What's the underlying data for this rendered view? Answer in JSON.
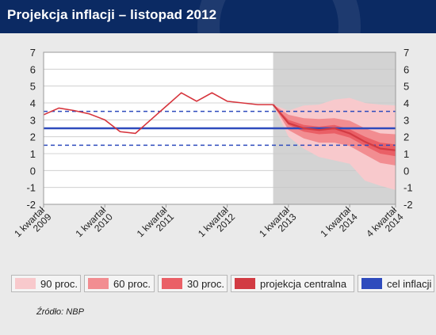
{
  "header": {
    "title": "Projekcja inflacji – listopad 2012"
  },
  "legend": {
    "items": [
      {
        "label": "90 proc.",
        "color": "#f8c9cc"
      },
      {
        "label": "60 proc.",
        "color": "#f28d91"
      },
      {
        "label": "30 proc.",
        "color": "#ea5f66"
      },
      {
        "label": "projekcja centralna",
        "color": "#d23b43"
      },
      {
        "label": "cel inflacji",
        "color": "#2e4bbd"
      }
    ]
  },
  "footer": {
    "source": "Źródło: NBP"
  },
  "chart_data": {
    "type": "line",
    "title": "Projekcja inflacji – listopad 2012",
    "xlabel": "",
    "ylabel": "",
    "ylim": [
      -2,
      7
    ],
    "yticks": [
      -2,
      -1,
      0,
      1,
      2,
      3,
      4,
      5,
      6,
      7
    ],
    "x_range_quarters": [
      0,
      23
    ],
    "x_ticks": [
      {
        "label": "1 kwartał 2009",
        "q": 0
      },
      {
        "label": "1 kwartał 2010",
        "q": 4
      },
      {
        "label": "1 kwartał 2011",
        "q": 8
      },
      {
        "label": "1 kwartał 2012",
        "q": 12
      },
      {
        "label": "1 kwartał 2013",
        "q": 16
      },
      {
        "label": "1 kwartał 2014",
        "q": 20
      },
      {
        "label": "4 kwartał 2014",
        "q": 23
      }
    ],
    "projection_start_q": 15,
    "target": 2.5,
    "tolerance_band": [
      1.5,
      3.5
    ],
    "history": {
      "q": [
        0,
        1,
        2,
        3,
        4,
        5,
        6,
        7,
        8,
        9,
        10,
        11,
        12,
        13,
        14,
        15
      ],
      "values": [
        3.3,
        3.7,
        3.55,
        3.35,
        3.0,
        2.3,
        2.2,
        3.0,
        3.8,
        4.6,
        4.1,
        4.6,
        4.1,
        4.0,
        3.9,
        3.9
      ]
    },
    "projection": {
      "q": [
        15,
        16,
        17,
        18,
        19,
        20,
        21,
        22,
        23
      ],
      "central": [
        3.9,
        2.8,
        2.5,
        2.4,
        2.5,
        2.2,
        1.7,
        1.3,
        1.2
      ],
      "band30": [
        [
          3.9,
          3.9
        ],
        [
          3.0,
          2.7
        ],
        [
          2.7,
          2.3
        ],
        [
          2.6,
          2.15
        ],
        [
          2.7,
          2.2
        ],
        [
          2.45,
          1.95
        ],
        [
          2.0,
          1.45
        ],
        [
          1.65,
          1.0
        ],
        [
          1.55,
          0.85
        ]
      ],
      "band60": [
        [
          3.9,
          3.9
        ],
        [
          3.3,
          2.4
        ],
        [
          3.1,
          1.9
        ],
        [
          3.05,
          1.65
        ],
        [
          3.1,
          1.65
        ],
        [
          2.95,
          1.45
        ],
        [
          2.5,
          0.95
        ],
        [
          2.2,
          0.45
        ],
        [
          2.15,
          0.3
        ]
      ],
      "band90": [
        [
          3.9,
          3.9
        ],
        [
          3.55,
          2.0
        ],
        [
          3.85,
          1.3
        ],
        [
          3.9,
          0.8
        ],
        [
          4.2,
          0.6
        ],
        [
          4.3,
          0.4
        ],
        [
          4.0,
          -0.6
        ],
        [
          3.9,
          -0.9
        ],
        [
          3.85,
          -1.15
        ]
      ]
    },
    "colors": {
      "history": "#d6343c",
      "projection_shade": "#d3d3d3",
      "target_line": "#2e4bbd"
    },
    "grid": true
  }
}
